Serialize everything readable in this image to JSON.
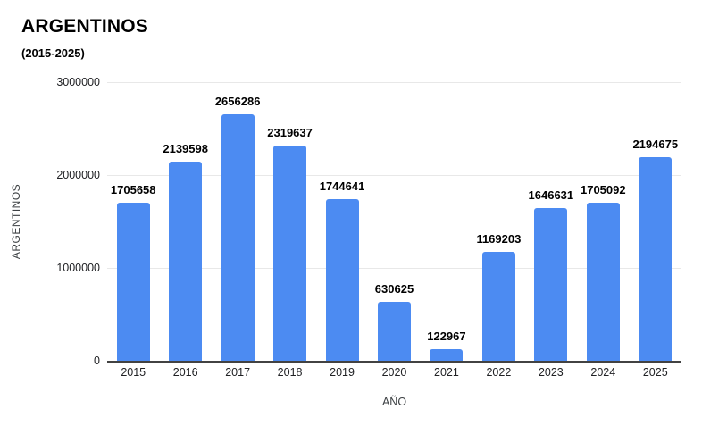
{
  "header": {
    "title": "ARGENTINOS",
    "subtitle": "(2015-2025)"
  },
  "chart_data": {
    "type": "bar",
    "title": "ARGENTINOS",
    "subtitle": "(2015-2025)",
    "categories": [
      "2015",
      "2016",
      "2017",
      "2018",
      "2019",
      "2020",
      "2021",
      "2022",
      "2023",
      "2024",
      "2025"
    ],
    "values": [
      1705658,
      2139598,
      2656286,
      2319637,
      1744641,
      630625,
      122967,
      1169203,
      1646631,
      1705092,
      2194675
    ],
    "xlabel": "AÑO",
    "ylabel": "ARGENTINOS",
    "ylim": [
      0,
      3000000
    ],
    "yticks": [
      0,
      1000000,
      2000000,
      3000000
    ],
    "grid": true,
    "legend": "none",
    "data_labels": true,
    "colors": {
      "bar": "#4c8bf2",
      "gridline": "#e8e8e8",
      "axis_line": "#424242",
      "label_text": "#000000",
      "axis_text": "#3c4043"
    }
  }
}
